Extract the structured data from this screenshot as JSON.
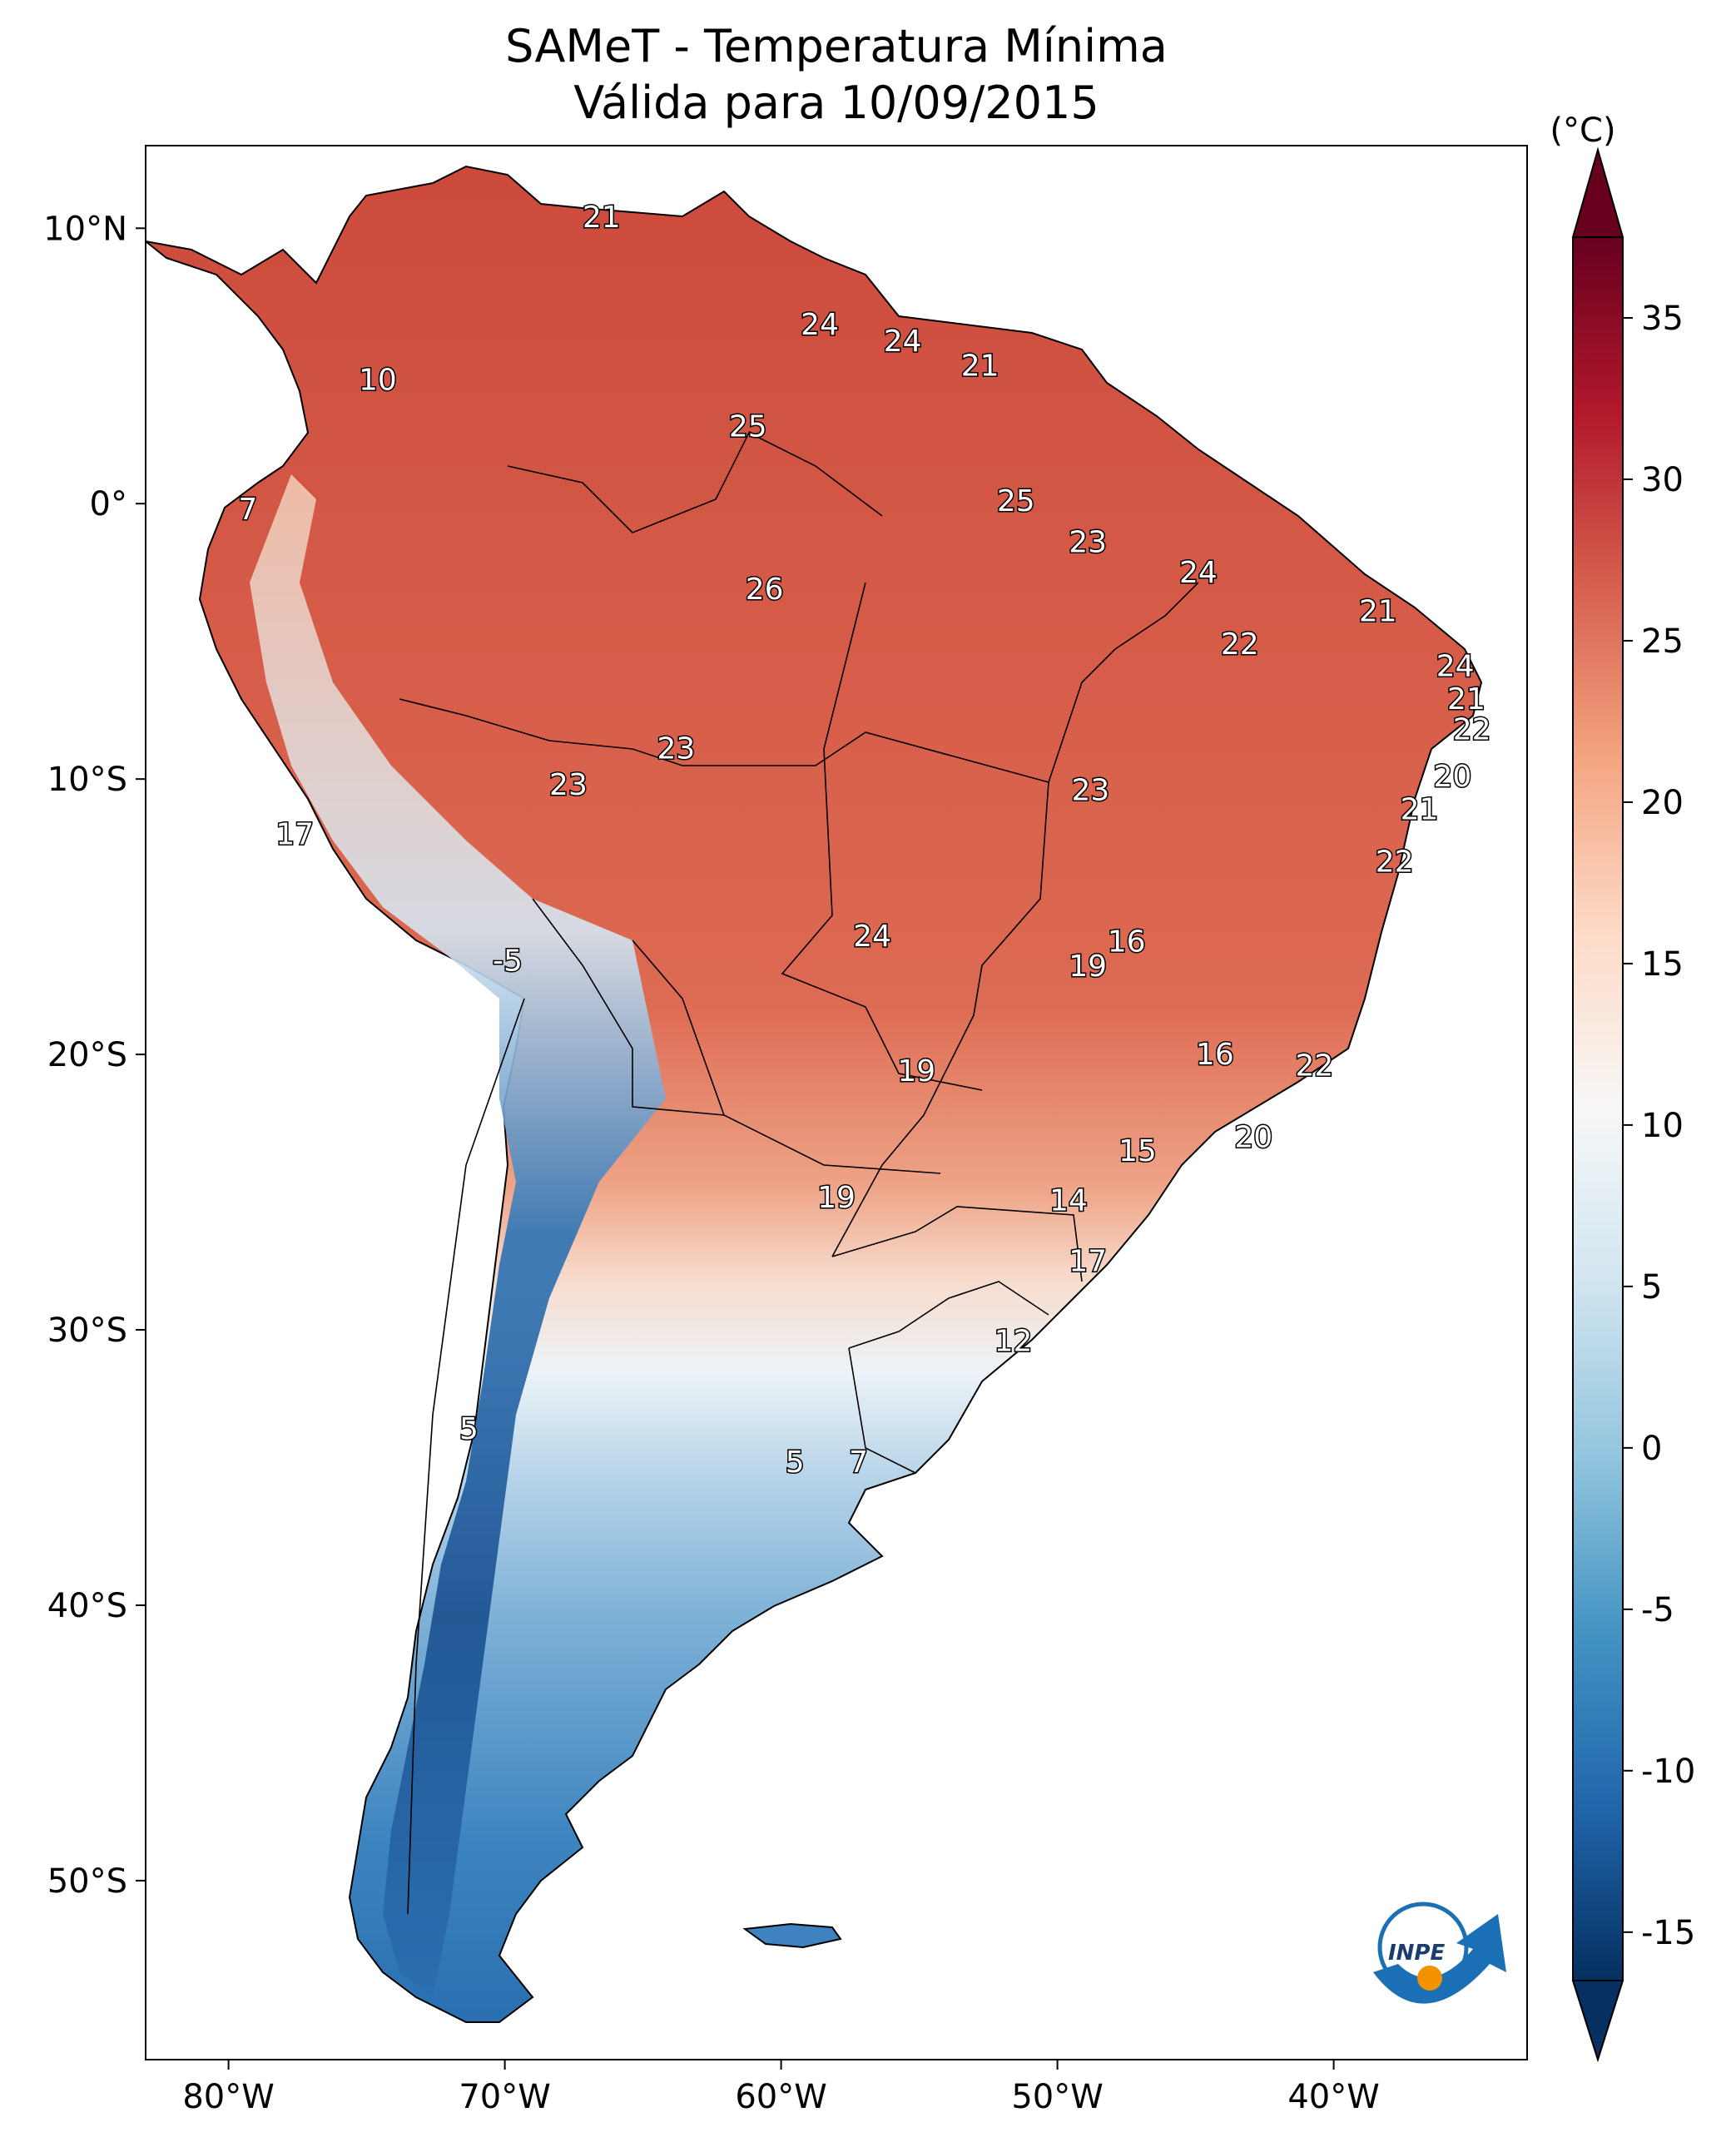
{
  "title": {
    "line1": "SAMeT - Temperatura Mínima",
    "line2": "Válida para 10/09/2015"
  },
  "map": {
    "extent": {
      "lon_min": -83,
      "lon_max": -33,
      "lat_min": -56.5,
      "lat_max": 13
    },
    "lon_ticks": [
      {
        "label": "80°W",
        "lon": -80
      },
      {
        "label": "70°W",
        "lon": -70
      },
      {
        "label": "60°W",
        "lon": -60
      },
      {
        "label": "50°W",
        "lon": -50
      },
      {
        "label": "40°W",
        "lon": -40
      }
    ],
    "lat_ticks": [
      {
        "label": "10°N",
        "lat": 10
      },
      {
        "label": "0°",
        "lat": 0
      },
      {
        "label": "10°S",
        "lat": -10
      },
      {
        "label": "20°S",
        "lat": -20
      },
      {
        "label": "30°S",
        "lat": -30
      },
      {
        "label": "40°S",
        "lat": -40
      },
      {
        "label": "50°S",
        "lat": -50
      }
    ],
    "isotherm_labels": [
      {
        "text": "21",
        "lon": -66.5,
        "lat": 10.4
      },
      {
        "text": "10",
        "lon": -74.6,
        "lat": 4.5
      },
      {
        "text": "7",
        "lon": -79.3,
        "lat": -0.2
      },
      {
        "text": "24",
        "lon": -58.6,
        "lat": 6.5
      },
      {
        "text": "24",
        "lon": -55.6,
        "lat": 5.9
      },
      {
        "text": "21",
        "lon": -52.8,
        "lat": 5.0
      },
      {
        "text": "25",
        "lon": -61.2,
        "lat": 2.8
      },
      {
        "text": "25",
        "lon": -51.5,
        "lat": 0.1
      },
      {
        "text": "23",
        "lon": -48.9,
        "lat": -1.4
      },
      {
        "text": "24",
        "lon": -44.9,
        "lat": -2.5
      },
      {
        "text": "21",
        "lon": -38.4,
        "lat": -3.9
      },
      {
        "text": "26",
        "lon": -60.6,
        "lat": -3.1
      },
      {
        "text": "22",
        "lon": -43.4,
        "lat": -5.1
      },
      {
        "text": "24",
        "lon": -35.6,
        "lat": -5.9
      },
      {
        "text": "21",
        "lon": -35.2,
        "lat": -7.1
      },
      {
        "text": "22",
        "lon": -35.0,
        "lat": -8.2
      },
      {
        "text": "20",
        "lon": -35.7,
        "lat": -9.9
      },
      {
        "text": "21",
        "lon": -36.9,
        "lat": -11.1
      },
      {
        "text": "23",
        "lon": -63.8,
        "lat": -8.9
      },
      {
        "text": "23",
        "lon": -67.7,
        "lat": -10.2
      },
      {
        "text": "23",
        "lon": -48.8,
        "lat": -10.4
      },
      {
        "text": "17",
        "lon": -77.6,
        "lat": -12.0
      },
      {
        "text": "22",
        "lon": -37.8,
        "lat": -13.0
      },
      {
        "text": "24",
        "lon": -56.7,
        "lat": -15.7
      },
      {
        "text": "16",
        "lon": -47.5,
        "lat": -15.9
      },
      {
        "text": "19",
        "lon": -48.9,
        "lat": -16.8
      },
      {
        "text": "-5",
        "lon": -69.9,
        "lat": -16.6
      },
      {
        "text": "16",
        "lon": -44.3,
        "lat": -20.0
      },
      {
        "text": "22",
        "lon": -40.7,
        "lat": -20.4
      },
      {
        "text": "19",
        "lon": -55.1,
        "lat": -20.6
      },
      {
        "text": "20",
        "lon": -42.9,
        "lat": -23.0
      },
      {
        "text": "15",
        "lon": -47.1,
        "lat": -23.5
      },
      {
        "text": "19",
        "lon": -58.0,
        "lat": -25.2
      },
      {
        "text": "14",
        "lon": -49.6,
        "lat": -25.3
      },
      {
        "text": "17",
        "lon": -48.9,
        "lat": -27.5
      },
      {
        "text": "12",
        "lon": -51.6,
        "lat": -30.4
      },
      {
        "text": "5",
        "lon": -71.3,
        "lat": -33.6
      },
      {
        "text": "5",
        "lon": -59.5,
        "lat": -34.8
      },
      {
        "text": "7",
        "lon": -57.2,
        "lat": -34.8
      }
    ]
  },
  "colorbar": {
    "unit": "(°C)",
    "min": -15,
    "max": 35,
    "colormap": "RdBu_r",
    "ticks": [
      "35",
      "30",
      "25",
      "20",
      "15",
      "10",
      "5",
      "0",
      "-5",
      "-10",
      "-15"
    ],
    "colors": [
      "#053061",
      "#2166ac",
      "#4393c3",
      "#92c5de",
      "#d1e5f0",
      "#f7f7f7",
      "#fddbc7",
      "#f4a582",
      "#d6604d",
      "#b2182b",
      "#67001f"
    ]
  },
  "logo": {
    "text": "INPE"
  }
}
